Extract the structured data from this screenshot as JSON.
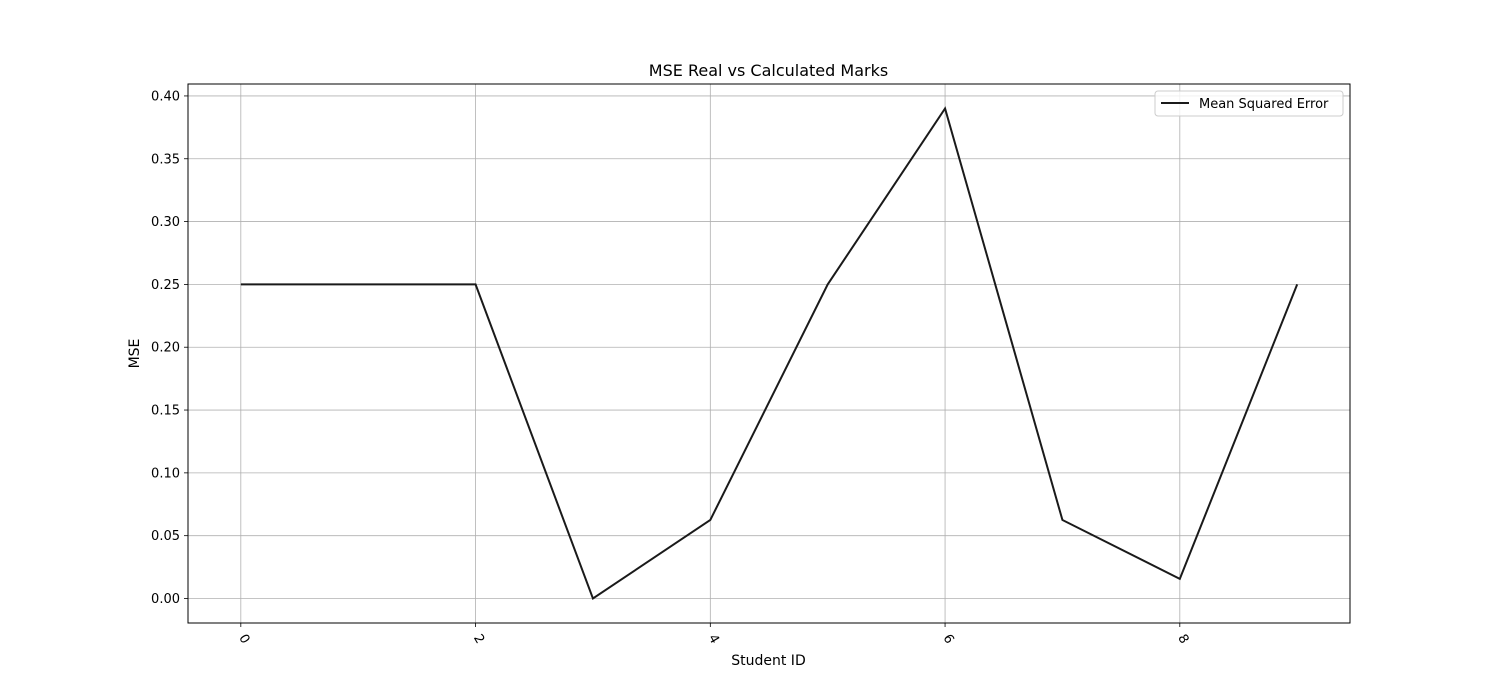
{
  "chart_data": {
    "type": "line",
    "title": "MSE Real vs Calculated Marks",
    "xlabel": "Student ID",
    "ylabel": "MSE",
    "x": [
      0,
      1,
      2,
      3,
      4,
      5,
      6,
      7,
      8,
      9
    ],
    "series": [
      {
        "name": "Mean Squared Error",
        "values": [
          0.25,
          0.25,
          0.25,
          0.0,
          0.0625,
          0.25,
          0.39,
          0.0625,
          0.0156,
          0.25
        ],
        "color": "#1a1a1a"
      }
    ],
    "xticks": [
      0,
      2,
      4,
      6,
      8
    ],
    "xtick_labels": [
      "0",
      "2",
      "4",
      "6",
      "8"
    ],
    "yticks": [
      0.0,
      0.05,
      0.1,
      0.15,
      0.2,
      0.25,
      0.3,
      0.35,
      0.4
    ],
    "ytick_labels": [
      "0.00",
      "0.05",
      "0.10",
      "0.15",
      "0.20",
      "0.25",
      "0.30",
      "0.35",
      "0.40"
    ],
    "xlim": [
      -0.45,
      9.45
    ],
    "ylim": [
      -0.0195,
      0.4095
    ],
    "grid": true,
    "legend_position": "top-right",
    "grid_color": "#b0b0b0"
  }
}
